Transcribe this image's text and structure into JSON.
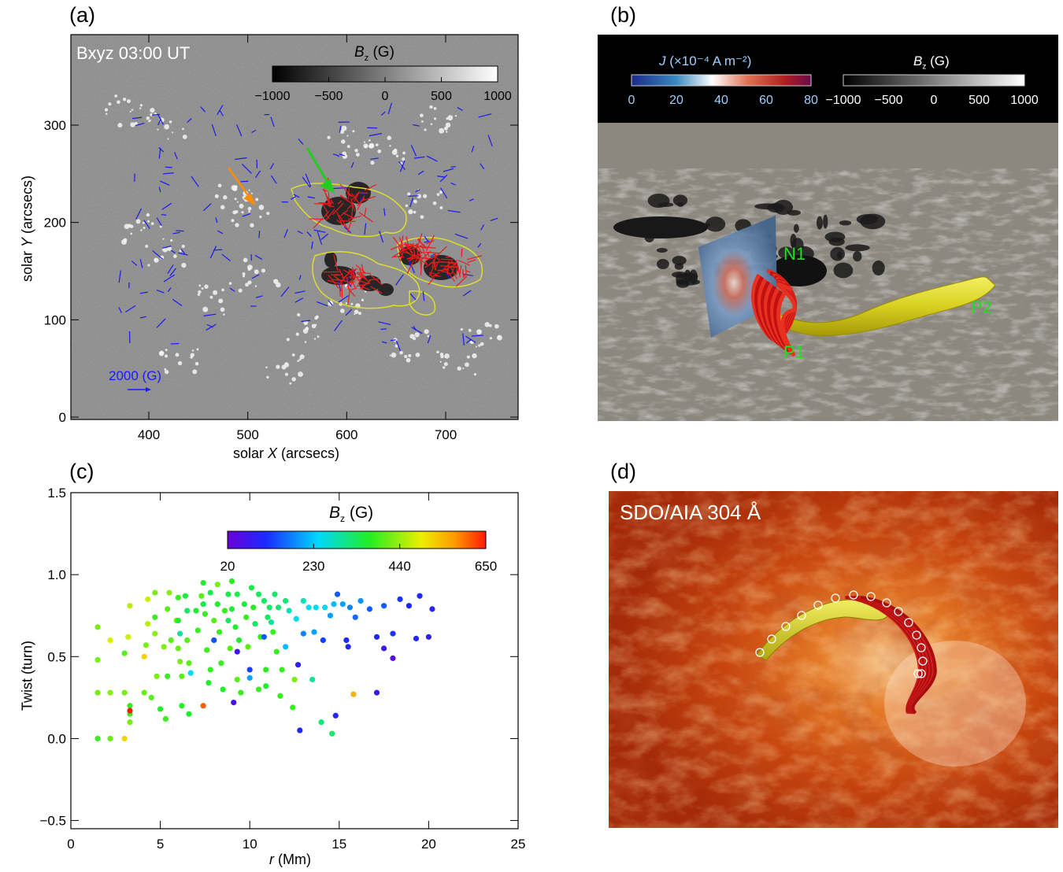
{
  "panels": {
    "a": {
      "label": "(a)",
      "title": "Bxyz 03:00 UT",
      "colorbar_label": "B",
      "colorbar_sub": "z",
      "colorbar_unit": " (G)",
      "colorbar_ticks": [
        "−1000",
        "−500",
        "0",
        "500",
        "1000"
      ],
      "vector_scale_label": "2000 (G)",
      "xlabel_pre": "solar ",
      "xlabel_var": "X",
      "xlabel_post": " (arcsecs)",
      "ylabel_pre": "solar ",
      "ylabel_var": "Y",
      "ylabel_post": " (arcsecs)",
      "xticks": [
        "400",
        "500",
        "600",
        "700"
      ],
      "yticks": [
        "0",
        "100",
        "200",
        "300"
      ]
    },
    "b": {
      "label": "(b)",
      "j_label": "J",
      "j_unit": " (×10⁻⁴ A m⁻²)",
      "j_ticks": [
        "0",
        "20",
        "40",
        "60",
        "80"
      ],
      "bz_label": "B",
      "bz_sub": "z",
      "bz_unit": " (G)",
      "bz_ticks": [
        "−1000",
        "−500",
        "0",
        "500",
        "1000"
      ],
      "annotations": [
        "N1",
        "P1",
        "P2"
      ]
    },
    "c": {
      "label": "(c)",
      "colorbar_label": "B",
      "colorbar_sub": "z",
      "colorbar_unit": " (G)",
      "colorbar_ticks": [
        "20",
        "230",
        "440",
        "650"
      ],
      "xlabel_var": "r",
      "xlabel_post": " (Mm)",
      "ylabel": "Twist (turn)"
    },
    "d": {
      "label": "(d)",
      "title": "SDO/AIA 304 Å"
    }
  },
  "chart_data": {
    "type": "scatter",
    "x_label": "r (Mm)",
    "y_label": "Twist (turn)",
    "xlim": [
      0,
      25
    ],
    "ylim": [
      -0.55,
      1.5
    ],
    "xticks": [
      0,
      5,
      10,
      15,
      20,
      25
    ],
    "yticks": [
      -0.5,
      0.0,
      0.5,
      1.0,
      1.5
    ],
    "color_label": "Bz (G)",
    "color_range": [
      20,
      650
    ],
    "points": [
      [
        1.5,
        0.68,
        420
      ],
      [
        1.5,
        0.48,
        420
      ],
      [
        1.5,
        0.28,
        420
      ],
      [
        1.5,
        0.0,
        380
      ],
      [
        2.2,
        0.6,
        480
      ],
      [
        2.2,
        0.28,
        430
      ],
      [
        2.2,
        0.0,
        410
      ],
      [
        3.0,
        0.52,
        400
      ],
      [
        3.0,
        0.28,
        420
      ],
      [
        3.0,
        0.0,
        520
      ],
      [
        3.2,
        0.62,
        470
      ],
      [
        3.3,
        0.81,
        460
      ],
      [
        3.3,
        0.2,
        380
      ],
      [
        3.3,
        0.15,
        380
      ],
      [
        3.3,
        0.17,
        650
      ],
      [
        3.3,
        0.1,
        420
      ],
      [
        4.1,
        0.28,
        410
      ],
      [
        4.1,
        0.5,
        520
      ],
      [
        4.2,
        0.57,
        420
      ],
      [
        4.3,
        0.7,
        460
      ],
      [
        4.3,
        0.85,
        470
      ],
      [
        4.5,
        0.25,
        400
      ],
      [
        4.7,
        0.89,
        420
      ],
      [
        4.7,
        0.74,
        380
      ],
      [
        4.7,
        0.64,
        430
      ],
      [
        4.8,
        0.38,
        420
      ],
      [
        5.0,
        0.18,
        360
      ],
      [
        5.2,
        0.56,
        420
      ],
      [
        5.3,
        0.12,
        380
      ],
      [
        5.4,
        0.38,
        380
      ],
      [
        5.4,
        0.79,
        400
      ],
      [
        5.5,
        0.89,
        430
      ],
      [
        5.6,
        0.6,
        400
      ],
      [
        5.9,
        0.72,
        420
      ],
      [
        6.0,
        0.86,
        380
      ],
      [
        6.0,
        0.72,
        360
      ],
      [
        6.0,
        0.55,
        410
      ],
      [
        6.1,
        0.64,
        300
      ],
      [
        6.1,
        0.47,
        420
      ],
      [
        6.2,
        0.38,
        400
      ],
      [
        6.2,
        0.2,
        370
      ],
      [
        6.4,
        0.87,
        350
      ],
      [
        6.5,
        0.78,
        330
      ],
      [
        6.5,
        0.6,
        400
      ],
      [
        6.6,
        0.46,
        400
      ],
      [
        6.6,
        0.15,
        360
      ],
      [
        7.0,
        0.78,
        360
      ],
      [
        7.1,
        0.66,
        380
      ],
      [
        7.3,
        0.87,
        400
      ],
      [
        7.4,
        0.95,
        360
      ],
      [
        7.4,
        0.82,
        340
      ],
      [
        7.4,
        0.2,
        610
      ],
      [
        7.5,
        0.76,
        380
      ],
      [
        7.6,
        0.54,
        380
      ],
      [
        7.7,
        0.34,
        360
      ],
      [
        7.8,
        0.89,
        340
      ],
      [
        7.8,
        0.42,
        380
      ],
      [
        8.0,
        0.72,
        400
      ],
      [
        8.0,
        0.6,
        140
      ],
      [
        8.2,
        0.94,
        420
      ],
      [
        8.2,
        0.82,
        360
      ],
      [
        8.3,
        0.65,
        380
      ],
      [
        8.4,
        0.46,
        380
      ],
      [
        8.5,
        0.3,
        360
      ],
      [
        8.6,
        0.78,
        380
      ],
      [
        8.8,
        0.88,
        340
      ],
      [
        8.8,
        0.72,
        330
      ],
      [
        8.9,
        0.55,
        400
      ],
      [
        9.0,
        0.96,
        370
      ],
      [
        9.0,
        0.79,
        350
      ],
      [
        9.2,
        0.68,
        360
      ],
      [
        9.3,
        0.88,
        340
      ],
      [
        9.3,
        0.36,
        400
      ],
      [
        9.4,
        0.6,
        360
      ],
      [
        9.5,
        0.28,
        380
      ],
      [
        9.7,
        0.82,
        350
      ],
      [
        9.8,
        0.74,
        380
      ],
      [
        9.9,
        0.56,
        400
      ],
      [
        10.0,
        0.42,
        130
      ],
      [
        10.1,
        0.92,
        340
      ],
      [
        10.2,
        0.8,
        370
      ],
      [
        10.3,
        0.7,
        330
      ],
      [
        10.5,
        0.88,
        330
      ],
      [
        10.6,
        0.62,
        380
      ],
      [
        10.8,
        0.84,
        330
      ],
      [
        10.9,
        0.42,
        370
      ],
      [
        11.0,
        0.74,
        330
      ],
      [
        11.1,
        0.8,
        330
      ],
      [
        11.3,
        0.65,
        380
      ],
      [
        11.4,
        0.88,
        330
      ],
      [
        11.5,
        0.53,
        380
      ],
      [
        11.6,
        0.8,
        320
      ],
      [
        11.8,
        0.42,
        380
      ],
      [
        12.0,
        0.84,
        320
      ],
      [
        12.2,
        0.78,
        280
      ],
      [
        12.5,
        0.36,
        420
      ],
      [
        12.6,
        0.73,
        250
      ],
      [
        12.8,
        0.05,
        110
      ],
      [
        13.0,
        0.84,
        280
      ],
      [
        13.3,
        0.8,
        250
      ],
      [
        13.6,
        0.65,
        200
      ],
      [
        13.7,
        0.8,
        250
      ],
      [
        14.0,
        0.1,
        320
      ],
      [
        14.2,
        0.8,
        250
      ],
      [
        14.5,
        0.75,
        200
      ],
      [
        14.7,
        0.82,
        220
      ],
      [
        14.9,
        0.88,
        150
      ],
      [
        15.2,
        0.82,
        200
      ],
      [
        15.4,
        0.6,
        110
      ],
      [
        15.6,
        0.8,
        180
      ],
      [
        15.9,
        0.74,
        160
      ],
      [
        16.2,
        0.84,
        190
      ],
      [
        16.7,
        0.79,
        150
      ],
      [
        17.1,
        0.62,
        110
      ],
      [
        17.5,
        0.81,
        150
      ],
      [
        18.0,
        0.64,
        120
      ],
      [
        18.4,
        0.85,
        120
      ],
      [
        18.9,
        0.81,
        110
      ],
      [
        19.3,
        0.61,
        100
      ],
      [
        19.5,
        0.87,
        110
      ],
      [
        20.0,
        0.62,
        90
      ],
      [
        20.2,
        0.79,
        100
      ],
      [
        10.5,
        0.3,
        380
      ],
      [
        10.9,
        0.32,
        360
      ],
      [
        11.7,
        0.26,
        380
      ],
      [
        12.4,
        0.19,
        380
      ],
      [
        13.0,
        0.64,
        180
      ],
      [
        13.5,
        0.36,
        300
      ],
      [
        14.1,
        0.6,
        130
      ],
      [
        14.8,
        0.14,
        100
      ],
      [
        14.6,
        0.03,
        330
      ],
      [
        15.8,
        0.27,
        550
      ],
      [
        17.1,
        0.28,
        90
      ],
      [
        9.3,
        0.53,
        75
      ],
      [
        9.1,
        0.22,
        60
      ],
      [
        12.7,
        0.45,
        90
      ],
      [
        18.0,
        0.49,
        50
      ],
      [
        15.5,
        0.56,
        100
      ],
      [
        17.5,
        0.55,
        80
      ],
      [
        10.0,
        0.37,
        200
      ],
      [
        10.8,
        0.62,
        150
      ],
      [
        11.2,
        0.71,
        300
      ],
      [
        12.0,
        0.56,
        220
      ],
      [
        6.7,
        0.4,
        240
      ]
    ]
  }
}
